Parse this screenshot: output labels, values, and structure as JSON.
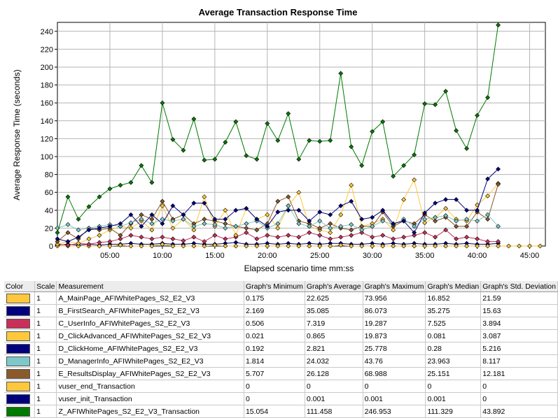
{
  "chart_data": {
    "type": "line",
    "title": "Average Transaction Response Time",
    "xlabel": "Elapsed scenario time mm:ss",
    "ylabel": "Average Response Time (seconds)",
    "xlim": [
      0,
      46.5
    ],
    "ylim": [
      0,
      250
    ],
    "x_ticks": [
      5,
      10,
      15,
      20,
      25,
      30,
      35,
      40,
      45
    ],
    "x_tick_labels": [
      "05:00",
      "10:00",
      "15:00",
      "20:00",
      "25:00",
      "30:00",
      "35:00",
      "40:00",
      "45:00"
    ],
    "y_ticks": [
      0,
      20,
      40,
      60,
      80,
      100,
      120,
      140,
      160,
      180,
      200,
      220,
      240
    ],
    "grid": true,
    "x": [
      0,
      1,
      2,
      3,
      4,
      5,
      6,
      7,
      8,
      9,
      10,
      11,
      12,
      13,
      14,
      15,
      16,
      17,
      18,
      19,
      20,
      21,
      22,
      23,
      24,
      25,
      26,
      27,
      28,
      29,
      30,
      31,
      32,
      33,
      34,
      35,
      36,
      37,
      38,
      39,
      40,
      41,
      42,
      43,
      44,
      45,
      46
    ],
    "series": [
      {
        "name": "Z_AFIWhitePages_S2_E2_V3_Transaction",
        "color": "#007a00",
        "values": [
          15,
          55,
          30,
          44,
          55,
          64,
          68,
          71,
          90,
          71,
          160,
          119,
          107,
          142,
          96,
          97,
          116,
          139,
          101,
          97,
          137,
          118,
          148,
          97,
          118,
          117,
          118,
          193,
          111,
          90,
          128,
          139,
          78,
          90,
          102,
          159,
          158,
          173,
          129,
          109,
          146,
          166,
          247,
          null,
          null,
          null,
          null
        ]
      },
      {
        "name": "B_FirstSearch_AFIWhitePages_S2_E2_V3",
        "color": "#00007f",
        "values": [
          8,
          5,
          10,
          18,
          20,
          22,
          25,
          35,
          22,
          35,
          25,
          45,
          35,
          48,
          48,
          30,
          30,
          40,
          42,
          30,
          22,
          38,
          40,
          40,
          28,
          38,
          35,
          45,
          50,
          30,
          32,
          40,
          25,
          28,
          15,
          37,
          48,
          52,
          52,
          40,
          40,
          75,
          86,
          null,
          null,
          null,
          null
        ]
      },
      {
        "name": "D_ManagerInfo_AFIWhitePages_S2_E2_V3",
        "color": "#7ec8c8",
        "values": [
          20,
          24,
          18,
          20,
          22,
          24,
          22,
          26,
          30,
          25,
          30,
          28,
          30,
          22,
          25,
          24,
          20,
          22,
          25,
          28,
          20,
          25,
          45,
          25,
          22,
          28,
          20,
          22,
          24,
          18,
          22,
          28,
          24,
          30,
          22,
          30,
          32,
          34,
          28,
          30,
          28,
          35,
          22,
          null,
          null,
          null,
          null
        ]
      },
      {
        "name": "E_ResultsDisplay_AFIWhitePages_S2_E2_V3",
        "color": "#8b5a2b",
        "values": [
          5,
          15,
          8,
          20,
          18,
          20,
          12,
          25,
          35,
          30,
          50,
          30,
          35,
          25,
          30,
          28,
          25,
          22,
          20,
          18,
          25,
          50,
          55,
          28,
          25,
          20,
          25,
          20,
          18,
          22,
          22,
          38,
          22,
          28,
          25,
          35,
          28,
          32,
          22,
          22,
          38,
          30,
          69,
          null,
          null,
          null,
          null
        ]
      },
      {
        "name": "A_MainPage_AFIWhitePages_S2_E2_V3",
        "color": "#ffc83c",
        "values": [
          2,
          5,
          3,
          8,
          12,
          18,
          22,
          20,
          28,
          18,
          45,
          20,
          30,
          18,
          55,
          22,
          40,
          12,
          42,
          30,
          35,
          20,
          45,
          60,
          22,
          18,
          15,
          35,
          68,
          22,
          25,
          30,
          18,
          52,
          74,
          26,
          32,
          42,
          30,
          28,
          46,
          56,
          70,
          null,
          null,
          null,
          null
        ]
      },
      {
        "name": "C_UserInfo_AFIWhitePages_S2_E2_V3",
        "color": "#c8305a",
        "values": [
          2,
          1,
          3,
          2,
          4,
          5,
          8,
          12,
          10,
          8,
          10,
          8,
          6,
          10,
          5,
          12,
          8,
          10,
          15,
          8,
          12,
          10,
          12,
          10,
          15,
          12,
          8,
          10,
          12,
          15,
          10,
          12,
          8,
          10,
          12,
          15,
          10,
          18,
          8,
          10,
          8,
          5,
          5,
          null,
          null,
          null,
          null
        ]
      },
      {
        "name": "D_ClickAdvanced_AFIWhitePages_S2_E2_V3",
        "color": "#ffc83c",
        "values": [
          0,
          0,
          0,
          0,
          0,
          0,
          1,
          0,
          0,
          0,
          2,
          0,
          0,
          0,
          0,
          1,
          0,
          0,
          0,
          0,
          0,
          0,
          0,
          0,
          0,
          0,
          0,
          1,
          0,
          0,
          0,
          0,
          0,
          0,
          0,
          0,
          0,
          0,
          0,
          0,
          0,
          0,
          0,
          0,
          0,
          0,
          0
        ]
      },
      {
        "name": "D_ClickHome_AFIWhitePages_S2_E2_V3",
        "color": "#00007f",
        "values": [
          1,
          2,
          1,
          2,
          1,
          2,
          2,
          3,
          2,
          2,
          3,
          2,
          2,
          3,
          2,
          2,
          3,
          4,
          2,
          2,
          3,
          2,
          3,
          2,
          3,
          2,
          3,
          3,
          2,
          2,
          3,
          2,
          3,
          2,
          3,
          2,
          2,
          3,
          2,
          3,
          2,
          2,
          3,
          null,
          null,
          null,
          null
        ]
      }
    ]
  },
  "legend_table": {
    "headers": [
      "Color",
      "Scale",
      "Measurement",
      "Graph's Minimum",
      "Graph's Average",
      "Graph's Maximum",
      "Graph's Median",
      "Graph's Std. Deviation"
    ],
    "rows": [
      {
        "color": "#ffc83c",
        "scale": "1",
        "measurement": "A_MainPage_AFIWhitePages_S2_E2_V3",
        "min": "0.175",
        "avg": "22.625",
        "max": "73.956",
        "median": "16.852",
        "sd": "21.59"
      },
      {
        "color": "#00007f",
        "scale": "1",
        "measurement": "B_FirstSearch_AFIWhitePages_S2_E2_V3",
        "min": "2.169",
        "avg": "35.085",
        "max": "86.073",
        "median": "35.275",
        "sd": "15.63"
      },
      {
        "color": "#c8305a",
        "scale": "1",
        "measurement": "C_UserInfo_AFIWhitePages_S2_E2_V3",
        "min": "0.506",
        "avg": "7.319",
        "max": "19.287",
        "median": "7.525",
        "sd": "3.894"
      },
      {
        "color": "#ffc83c",
        "scale": "1",
        "measurement": "D_ClickAdvanced_AFIWhitePages_S2_E2_V3",
        "min": "0.021",
        "avg": "0.865",
        "max": "19.873",
        "median": "0.081",
        "sd": "3.087"
      },
      {
        "color": "#00007f",
        "scale": "1",
        "measurement": "D_ClickHome_AFIWhitePages_S2_E2_V3",
        "min": "0.192",
        "avg": "2.821",
        "max": "25.778",
        "median": "0.28",
        "sd": "5.216"
      },
      {
        "color": "#7ec8c8",
        "scale": "1",
        "measurement": "D_ManagerInfo_AFIWhitePages_S2_E2_V3",
        "min": "1.814",
        "avg": "24.032",
        "max": "43.76",
        "median": "23.963",
        "sd": "8.117"
      },
      {
        "color": "#8b5a2b",
        "scale": "1",
        "measurement": "E_ResultsDisplay_AFIWhitePages_S2_E2_V3",
        "min": "5.707",
        "avg": "26.128",
        "max": "68.988",
        "median": "25.151",
        "sd": "12.181"
      },
      {
        "color": "#ffc83c",
        "scale": "1",
        "measurement": "vuser_end_Transaction",
        "min": "0",
        "avg": "0",
        "max": "0",
        "median": "0",
        "sd": "0"
      },
      {
        "color": "#00007f",
        "scale": "1",
        "measurement": "vuser_init_Transaction",
        "min": "0",
        "avg": "0.001",
        "max": "0.001",
        "median": "0.001",
        "sd": "0"
      },
      {
        "color": "#007a00",
        "scale": "1",
        "measurement": "Z_AFIWhitePages_S2_E2_V3_Transaction",
        "min": "15.054",
        "avg": "111.458",
        "max": "246.953",
        "median": "111.329",
        "sd": "43.892"
      }
    ]
  }
}
